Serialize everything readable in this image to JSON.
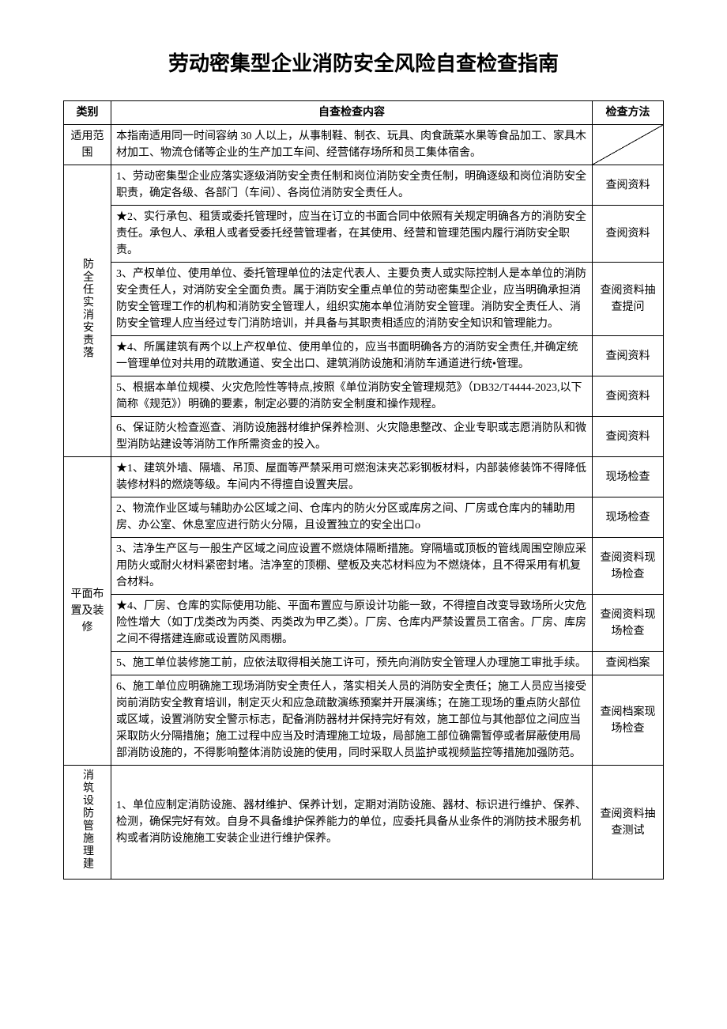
{
  "title": "劳动密集型企业消防安全风险自查检查指南",
  "headers": {
    "category": "类别",
    "content": "自查检查内容",
    "method": "检查方法"
  },
  "sections": [
    {
      "category": "适用范围",
      "categoryVertical": false,
      "rows": [
        {
          "content": "本指南适用同一时间容纳 30 人以上，从事制鞋、制衣、玩具、肉食蔬菜水果等食品加工、家具木材加工、物流仓储等企业的生产加工车间、经营储存场所和员工集体宿舍。",
          "method": "",
          "methodDiagonal": true
        }
      ]
    },
    {
      "category": "防全任实消安责落",
      "categoryVertical": true,
      "rows": [
        {
          "content": "1、劳动密集型企业应落实逐级消防安全责任制和岗位消防安全责任制，明确逐级和岗位消防安全职责，确定各级、各部门（车间）、各岗位消防安全责任人。",
          "method": "查阅资料"
        },
        {
          "content": "★2、实行承包、租赁或委托管理时，应当在订立的书面合同中依照有关规定明确各方的消防安全责任。承包人、承租人或者受委托经营管理者，在其使用、经营和管理范围内履行消防安全职责。",
          "method": "查阅资料"
        },
        {
          "content": "3、产权单位、使用单位、委托管理单位的法定代表人、主要负责人或实际控制人是本单位的消防安全责任人，对消防安全全面负责。属于消防安全重点单位的劳动密集型企业，应当明确承担消防安全管理工作的机构和消防安全管理人，组织实施本单位消防安全管理。消防安全责任人、消防安全管理人应当经过专门消防培训，并具备与其职责相适应的消防安全知识和管理能力。",
          "method": "查阅资料抽查提问"
        },
        {
          "content": "★4、所属建筑有两个以上产权单位、使用单位的，应当书面明确各方的消防安全责任,并确定统一管理单位对共用的疏散通道、安全出口、建筑消防设施和消防车通道进行统•管理。",
          "method": "查阅资料"
        },
        {
          "content": "5、根据本单位规模、火灾危险性等特点,按照《单位消防安全管理规范》（DB32/T4444-2023,以下简称《规范》）明确的要素，制定必要的消防安全制度和操作规程。",
          "method": "查阅资料"
        },
        {
          "content": "6、保证防火检查巡查、消防设施器材维护保养检测、火灾隐患整改、企业专职或志愿消防队和微型消防站建设等消防工作所需资金的投入。",
          "method": "查阅资料"
        }
      ]
    },
    {
      "category": "平面布置及装修",
      "categoryVertical": false,
      "rows": [
        {
          "content": "★1、建筑外墙、隔墙、吊顶、屋面等严禁采用可燃泡沫夹芯彩钢板材料，内部装修装饰不得降低装修材料的燃烧等级。车间内不得擅自设置夹层。",
          "method": "现场检查"
        },
        {
          "content": "2、物流作业区域与辅助办公区域之间、仓库内的防火分区或库房之间、厂房或仓库内的辅助用房、办公室、休息室应进行防火分隔，且设置独立的安全出口o",
          "method": "现场检查"
        },
        {
          "content": "3、洁净生产区与一般生产区域之间应设置不燃烧体隔断措施。穿隔墙或顶板的管线周围空隙应采用防火或耐火材料紧密封堵。洁净室的顶棚、壁板及夹芯材料应为不燃烧体，且不得采用有机复合材料。",
          "method": "查阅资料现场检查"
        },
        {
          "content": "★4、厂房、仓库的实际使用功能、平面布置应与原设计功能一致，不得擅自改变导致场所火灾危险性增大（如丁戊类改为丙类、丙类改为甲乙类）。厂房、仓库内严禁设置员工宿舍。厂房、库房之间不得搭建连廊或设置防风雨棚。",
          "method": "查阅资料现场检查"
        },
        {
          "content": "5、施工单位装修施工前，应依法取得相关施工许可，预先向消防安全管理人办理施工审批手续。",
          "method": "查阅档案"
        },
        {
          "content": "6、施工单位应明确施工现场消防安全责任人，落实相关人员的消防安全责任；施工人员应当接受岗前消防安全教育培训，制定灭火和应急疏散演练预案并开展演练；在施工现场的重点防火部位或区域，设置消防安全警示标志，配备消防器材并保持完好有效，施工部位与其他部位之间应当采取防火分隔措施；施工过程中应当及时清理施工垃圾，局部施工部位确需暂停或者屏蔽使用局部消防设施的，不得影响整体消防设施的使用，同时采取人员监护或视频监控等措施加强防范。",
          "method": "查阅档案现场检查"
        }
      ]
    },
    {
      "category": "消筑设防管施理建",
      "categoryVertical": true,
      "rows": [
        {
          "content": "1、单位应制定消防设施、器材维护、保养计划，定期对消防设施、器材、标识进行维护、保养、检测，确保完好有效。自身不具备维护保养能力的单位，应委托具备从业条件的消防技术服务机构或者消防设施施工安装企业进行维护保养。",
          "method": "查阅资料抽查测试"
        }
      ]
    }
  ]
}
